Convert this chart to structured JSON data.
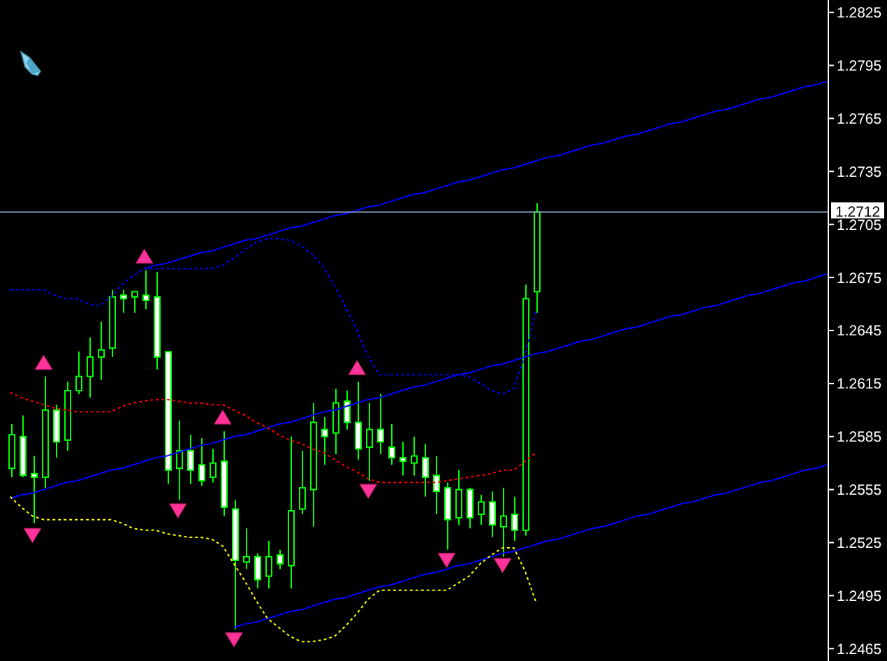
{
  "chart_data": {
    "type": "candlestick",
    "categories": [
      null,
      null,
      null,
      null,
      null,
      null,
      null,
      null,
      null,
      null,
      null,
      null,
      null,
      null,
      null,
      null,
      null,
      null,
      null,
      null,
      null,
      null,
      null,
      null,
      null,
      null,
      null,
      null,
      null,
      null,
      null,
      null,
      null,
      null,
      null,
      null,
      null,
      null,
      null,
      null,
      null,
      null,
      null,
      null,
      null,
      null,
      null,
      null,
      null,
      null,
      null,
      null,
      null,
      null,
      null,
      null,
      null,
      null,
      null,
      null,
      null,
      null,
      null,
      null,
      null,
      null,
      null,
      null,
      null,
      null,
      null,
      null,
      null,
      null
    ],
    "ohlc": [
      [
        1.2567,
        1.2592,
        1.2562,
        1.2586
      ],
      [
        1.2585,
        1.2597,
        1.2562,
        1.2563
      ],
      [
        1.2564,
        1.2574,
        1.2536,
        1.2562
      ],
      [
        1.2562,
        1.2619,
        1.2556,
        1.26
      ],
      [
        1.26,
        1.2603,
        1.2573,
        1.2582
      ],
      [
        1.2583,
        1.2616,
        1.2577,
        1.2611
      ],
      [
        1.2611,
        1.2633,
        1.2609,
        1.2619
      ],
      [
        1.2619,
        1.2641,
        1.2607,
        1.263
      ],
      [
        1.263,
        1.265,
        1.2617,
        1.2634
      ],
      [
        1.2635,
        1.2668,
        1.263,
        1.2664
      ],
      [
        1.2665,
        1.2668,
        1.2655,
        1.2663
      ],
      [
        1.2664,
        1.2667,
        1.2655,
        1.2667
      ],
      [
        1.2665,
        1.2679,
        1.2657,
        1.2662
      ],
      [
        1.2664,
        1.2678,
        1.2623,
        1.263
      ],
      [
        1.2633,
        1.2633,
        1.2558,
        1.2566
      ],
      [
        1.2567,
        1.2594,
        1.2549,
        1.2577
      ],
      [
        1.2577,
        1.2586,
        1.2558,
        1.2566
      ],
      [
        1.2569,
        1.2584,
        1.2557,
        1.256
      ],
      [
        1.2562,
        1.2578,
        1.2559,
        1.257
      ],
      [
        1.2571,
        1.2588,
        1.254,
        1.2545
      ],
      [
        1.2544,
        1.2549,
        1.2476,
        1.2515
      ],
      [
        1.2514,
        1.2533,
        1.251,
        1.2517
      ],
      [
        1.2517,
        1.2519,
        1.2499,
        1.2504
      ],
      [
        1.2506,
        1.2526,
        1.2499,
        1.2517
      ],
      [
        1.2518,
        1.2521,
        1.251,
        1.2513
      ],
      [
        1.2512,
        1.2585,
        1.2499,
        1.2543
      ],
      [
        1.2544,
        1.2577,
        1.2541,
        1.2556
      ],
      [
        1.2555,
        1.2604,
        1.2534,
        1.2593
      ],
      [
        1.2589,
        1.2596,
        1.2569,
        1.2585
      ],
      [
        1.2587,
        1.2612,
        1.2575,
        1.2604
      ],
      [
        1.2605,
        1.2611,
        1.2589,
        1.2593
      ],
      [
        1.2593,
        1.2616,
        1.2572,
        1.2578
      ],
      [
        1.2579,
        1.2604,
        1.256,
        1.2589
      ],
      [
        1.2589,
        1.2609,
        1.2575,
        1.2582
      ],
      [
        1.2579,
        1.2592,
        1.2569,
        1.2573
      ],
      [
        1.2573,
        1.2582,
        1.2563,
        1.2571
      ],
      [
        1.257,
        1.2585,
        1.2563,
        1.2574
      ],
      [
        1.2573,
        1.2581,
        1.2551,
        1.2562
      ],
      [
        1.2563,
        1.2574,
        1.2541,
        1.2554
      ],
      [
        1.2556,
        1.2559,
        1.2521,
        1.2538
      ],
      [
        1.2539,
        1.2566,
        1.2535,
        1.2555
      ],
      [
        1.2555,
        1.2556,
        1.2533,
        1.2539
      ],
      [
        1.2541,
        1.2552,
        1.2535,
        1.2548
      ],
      [
        1.2548,
        1.2554,
        1.2528,
        1.2535
      ],
      [
        1.2534,
        1.2556,
        1.2517,
        1.254
      ],
      [
        1.2541,
        1.2551,
        1.2526,
        1.2532
      ],
      [
        1.2532,
        1.2671,
        1.2529,
        1.2663
      ],
      [
        1.2667,
        1.2717,
        1.2655,
        1.2712
      ],
      null,
      null,
      null,
      null,
      null,
      null,
      null,
      null,
      null,
      null,
      null,
      null,
      null,
      null,
      null,
      null,
      null,
      null,
      null,
      null,
      null,
      null,
      null,
      null,
      null,
      null
    ],
    "color": "#00ff00",
    "colors": [
      "#000000",
      "#ffffff",
      "#ffffff",
      "#000000",
      "#ffffff",
      "#000000",
      "#000000",
      "#000000",
      "#000000",
      "#000000",
      "#ffffff",
      "#000000",
      "#ffffff",
      "#ffffff",
      "#ffffff",
      "#000000",
      "#ffffff",
      "#ffffff",
      "#000000",
      "#ffffff",
      "#ffffff",
      "#000000",
      "#ffffff",
      "#000000",
      "#ffffff",
      "#000000",
      "#000000",
      "#000000",
      "#ffffff",
      "#000000",
      "#ffffff",
      "#ffffff",
      "#000000",
      "#ffffff",
      "#ffffff",
      "#ffffff",
      "#000000",
      "#ffffff",
      "#ffffff",
      "#ffffff",
      "#000000",
      "#ffffff",
      "#000000",
      "#ffffff",
      "#000000",
      "#ffffff",
      "#000000",
      "#000000",
      null,
      null,
      null,
      null,
      null,
      null,
      null,
      null,
      null,
      null,
      null,
      null,
      null,
      null,
      null,
      null,
      null,
      null,
      null,
      null,
      null,
      null,
      null,
      null,
      null,
      null
    ],
    "series": [
      {
        "type": "line",
        "color": "#0000ff",
        "values": [
          null,
          null,
          null,
          null,
          null,
          null,
          null,
          null,
          null,
          null,
          null,
          null,
          1.268,
          1.2682,
          1.2683,
          1.2685,
          1.2687,
          1.2689,
          1.269,
          1.2692,
          1.2694,
          1.2696,
          1.2697,
          1.2699,
          1.2701,
          1.2703,
          1.2704,
          1.2706,
          1.2708,
          1.271,
          1.2711,
          1.2713,
          1.2715,
          1.2716,
          1.2718,
          1.272,
          1.2722,
          1.2723,
          1.2725,
          1.2727,
          1.2729,
          1.273,
          1.2732,
          1.2734,
          1.2736,
          1.2737,
          1.2739,
          1.2741,
          1.2743,
          1.2744,
          1.2746,
          1.2748,
          1.275,
          1.2751,
          1.2753,
          1.2755,
          1.2756,
          1.2758,
          1.276,
          1.2762,
          1.2763,
          1.2765,
          1.2767,
          1.2769,
          1.277,
          1.2772,
          1.2774,
          1.2776,
          1.2777,
          1.2779,
          1.2781,
          1.2783,
          1.2784,
          1.2786
        ]
      },
      {
        "type": "line",
        "color": "#0000ff",
        "values": [
          1.255,
          1.2552,
          1.2553,
          1.2555,
          1.2557,
          1.2559,
          1.256,
          1.2562,
          1.2564,
          1.2566,
          1.2567,
          1.2569,
          1.2571,
          1.2573,
          1.2574,
          1.2576,
          1.2578,
          1.258,
          1.2581,
          1.2583,
          1.2585,
          1.2586,
          1.2588,
          1.259,
          1.2592,
          1.2593,
          1.2595,
          1.2597,
          1.2599,
          1.26,
          1.2602,
          1.2604,
          1.2606,
          1.2607,
          1.2609,
          1.2611,
          1.2613,
          1.2614,
          1.2616,
          1.2618,
          1.262,
          1.2621,
          1.2623,
          1.2625,
          1.2626,
          1.2628,
          1.263,
          1.2632,
          1.2633,
          1.2635,
          1.2637,
          1.2639,
          1.264,
          1.2642,
          1.2644,
          1.2646,
          1.2647,
          1.2649,
          1.2651,
          1.2653,
          1.2654,
          1.2656,
          1.2658,
          1.2659,
          1.2661,
          1.2663,
          1.2665,
          1.2666,
          1.2668,
          1.267,
          1.2672,
          1.2673,
          1.2675,
          1.2677
        ]
      },
      {
        "type": "line",
        "color": "#0000ff",
        "values": [
          null,
          null,
          null,
          null,
          null,
          null,
          null,
          null,
          null,
          null,
          null,
          null,
          null,
          null,
          null,
          null,
          null,
          null,
          null,
          null,
          1.2477,
          1.2479,
          1.248,
          1.2482,
          1.2484,
          1.2486,
          1.2487,
          1.2489,
          1.2491,
          1.2493,
          1.2494,
          1.2496,
          1.2498,
          1.25,
          1.2501,
          1.2503,
          1.2505,
          1.2507,
          1.2508,
          1.251,
          1.2512,
          1.2513,
          1.2515,
          1.2517,
          1.2519,
          1.252,
          1.2522,
          1.2524,
          1.2526,
          1.2527,
          1.2529,
          1.2531,
          1.2533,
          1.2534,
          1.2536,
          1.2538,
          1.254,
          1.2541,
          1.2543,
          1.2545,
          1.2547,
          1.2548,
          1.255,
          1.2552,
          1.2553,
          1.2555,
          1.2557,
          1.2559,
          1.256,
          1.2562,
          1.2564,
          1.2566,
          1.2567,
          1.2569
        ]
      },
      {
        "type": "line",
        "color": "#0000ff",
        "line_style": "dotted",
        "values": [
          1.2668,
          1.2668,
          1.2668,
          1.2668,
          1.2665,
          1.2663,
          1.2663,
          1.266,
          1.2659,
          1.2664,
          1.2671,
          1.2676,
          1.268,
          1.268,
          1.268,
          1.268,
          1.268,
          1.268,
          1.268,
          1.2682,
          1.2686,
          1.2691,
          1.2695,
          1.2697,
          1.2697,
          1.2696,
          1.2693,
          1.2688,
          1.2681,
          1.267,
          1.2658,
          1.2645,
          1.263,
          1.262,
          1.262,
          1.262,
          1.262,
          1.262,
          1.262,
          1.262,
          1.262,
          1.2619,
          1.2615,
          1.2611,
          1.2609,
          1.2612,
          1.2631,
          1.2657,
          null,
          null,
          null,
          null,
          null,
          null,
          null,
          null,
          null,
          null,
          null,
          null,
          null,
          null,
          null,
          null,
          null,
          null,
          null,
          null,
          null,
          null,
          null,
          null,
          null,
          null
        ]
      },
      {
        "type": "line",
        "color": "#ff0000",
        "line_style": "dotted",
        "values": [
          1.261,
          1.2607,
          1.2605,
          1.2603,
          1.2601,
          1.26,
          1.2599,
          1.2599,
          1.2599,
          1.2599,
          1.2602,
          1.2604,
          1.2605,
          1.2606,
          1.2606,
          1.2605,
          1.2604,
          1.2604,
          1.2603,
          1.2603,
          1.26,
          1.2597,
          1.2593,
          1.259,
          1.2586,
          1.2583,
          1.2581,
          1.2578,
          1.2576,
          1.2572,
          1.2568,
          1.2565,
          1.2561,
          1.2559,
          1.2559,
          1.2559,
          1.2559,
          1.2559,
          1.2559,
          1.256,
          1.2561,
          1.2562,
          1.2563,
          1.2564,
          1.2566,
          1.2566,
          1.2571,
          1.2576,
          null,
          null,
          null,
          null,
          null,
          null,
          null,
          null,
          null,
          null,
          null,
          null,
          null,
          null,
          null,
          null,
          null,
          null,
          null,
          null,
          null,
          null,
          null,
          null,
          null,
          null
        ]
      },
      {
        "type": "line",
        "color": "#ffff00",
        "line_style": "dotted",
        "values": [
          1.2551,
          1.2545,
          1.254,
          1.2538,
          1.2538,
          1.2538,
          1.2538,
          1.2538,
          1.2538,
          1.2538,
          1.2536,
          1.2533,
          1.2532,
          1.2532,
          1.253,
          1.2529,
          1.2528,
          1.2528,
          1.2527,
          1.2523,
          1.2513,
          1.2503,
          1.2492,
          1.2482,
          1.2477,
          1.2472,
          1.2469,
          1.2469,
          1.247,
          1.2472,
          1.2478,
          1.2485,
          1.2493,
          1.2498,
          1.2498,
          1.2498,
          1.2498,
          1.2498,
          1.2498,
          1.2498,
          1.2502,
          1.2506,
          1.2513,
          1.2518,
          1.2522,
          1.2522,
          1.2509,
          1.2491,
          null,
          null,
          null,
          null,
          null,
          null,
          null,
          null,
          null,
          null,
          null,
          null,
          null,
          null,
          null,
          null,
          null,
          null,
          null,
          null,
          null,
          null,
          null,
          null,
          null,
          null
        ]
      },
      {
        "type": "scatter",
        "color": "#ff3399",
        "marker": "triangle",
        "values": [
          null,
          null,
          null,
          1.2627,
          null,
          null,
          null,
          null,
          null,
          null,
          null,
          null,
          1.2687,
          null,
          null,
          null,
          null,
          null,
          null,
          1.2596,
          null,
          null,
          null,
          null,
          null,
          null,
          null,
          null,
          null,
          null,
          null,
          1.2624,
          null,
          null,
          null,
          null,
          null,
          null,
          null,
          null,
          null,
          null,
          null,
          null,
          null,
          null,
          null,
          null,
          null,
          null,
          null,
          null,
          null,
          null,
          null,
          null,
          null,
          null,
          null,
          null,
          null,
          null,
          null,
          null,
          null,
          null,
          null,
          null,
          null,
          null,
          null,
          null,
          null,
          null
        ]
      },
      {
        "type": "scatter",
        "color": "#ff3399",
        "marker": "triangle",
        "values": [
          null,
          null,
          1.2529,
          null,
          null,
          null,
          null,
          null,
          null,
          null,
          null,
          null,
          null,
          null,
          null,
          1.2543,
          null,
          null,
          null,
          null,
          1.247,
          null,
          null,
          null,
          null,
          null,
          null,
          null,
          null,
          null,
          null,
          null,
          1.2554,
          null,
          null,
          null,
          null,
          null,
          null,
          1.2515,
          null,
          null,
          null,
          null,
          1.2512,
          null,
          null,
          null,
          null,
          null,
          null,
          null,
          null,
          null,
          null,
          null,
          null,
          null,
          null,
          null,
          null,
          null,
          null,
          null,
          null,
          null,
          null,
          null,
          null,
          null,
          null,
          null,
          null,
          null
        ]
      }
    ],
    "ylim": [
      1.2458,
      1.2832
    ],
    "yticks": [
      1.2465,
      1.2495,
      1.2525,
      1.2555,
      1.2585,
      1.2615,
      1.2645,
      1.2675,
      1.2705,
      1.2735,
      1.2765,
      1.2795,
      1.2825
    ],
    "ref_lines": [
      {
        "axis": "y",
        "value": 1.2712,
        "label": "1.2712",
        "color": "#7f9db9"
      }
    ],
    "tick_labels": "y"
  }
}
